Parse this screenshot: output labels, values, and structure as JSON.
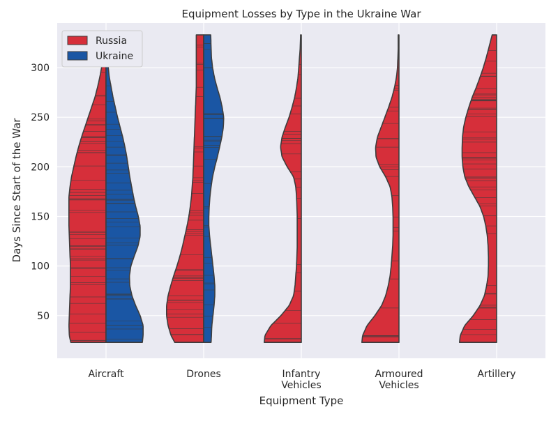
{
  "chart_data": {
    "type": "violin",
    "title": "Equipment Losses by Type in the Ukraine War",
    "xlabel": "Equipment Type",
    "ylabel": "Days Since Start of the War",
    "categories": [
      "Aircraft",
      "Drones",
      "Infantry Vehicles",
      "Armoured Vehicles",
      "Artillery"
    ],
    "category_labels": [
      [
        "Aircraft"
      ],
      [
        "Drones"
      ],
      [
        "Infantry",
        "Vehicles"
      ],
      [
        "Armoured",
        "Vehicles"
      ],
      [
        "Artillery"
      ]
    ],
    "ylim": [
      7,
      345
    ],
    "yticks": [
      50,
      100,
      150,
      200,
      250,
      300
    ],
    "y_range": [
      23,
      333
    ],
    "grid": true,
    "legend": {
      "position": "top-left",
      "entries": [
        "Russia",
        "Ukraine"
      ]
    },
    "series": [
      {
        "name": "Russia",
        "color": "#d62f3a",
        "side": "left",
        "density_y": [
          23,
          30,
          40,
          50,
          60,
          70,
          80,
          90,
          100,
          110,
          120,
          130,
          140,
          150,
          160,
          170,
          180,
          190,
          200,
          210,
          220,
          230,
          240,
          250,
          260,
          270,
          280,
          290,
          300,
          310,
          320,
          333
        ],
        "widths": [
          [
            0.95,
            0.99,
            1.0,
            0.99,
            0.98,
            0.97,
            0.96,
            0.96,
            0.96,
            0.97,
            0.98,
            0.99,
            1.0,
            1.0,
            1.0,
            1.0,
            0.97,
            0.93,
            0.87,
            0.81,
            0.74,
            0.66,
            0.57,
            0.48,
            0.39,
            0.3,
            0.23,
            0.17,
            0.12,
            0.08,
            0.05,
            0.02
          ],
          [
            0.78,
            0.88,
            0.96,
            1.0,
            1.0,
            0.96,
            0.89,
            0.81,
            0.72,
            0.64,
            0.57,
            0.51,
            0.45,
            0.4,
            0.36,
            0.33,
            0.31,
            0.29,
            0.28,
            0.27,
            0.26,
            0.25,
            0.24,
            0.23,
            0.22,
            0.21,
            0.2,
            0.2,
            0.2,
            0.2,
            0.2,
            0.2
          ],
          [
            1.0,
            0.98,
            0.82,
            0.55,
            0.33,
            0.21,
            0.17,
            0.15,
            0.13,
            0.12,
            0.11,
            0.11,
            0.11,
            0.11,
            0.12,
            0.13,
            0.15,
            0.21,
            0.38,
            0.52,
            0.56,
            0.52,
            0.43,
            0.33,
            0.25,
            0.18,
            0.13,
            0.09,
            0.07,
            0.05,
            0.03,
            0.02
          ],
          [
            1.0,
            0.98,
            0.86,
            0.65,
            0.47,
            0.36,
            0.29,
            0.24,
            0.21,
            0.19,
            0.17,
            0.16,
            0.16,
            0.16,
            0.17,
            0.19,
            0.24,
            0.36,
            0.52,
            0.62,
            0.63,
            0.58,
            0.48,
            0.38,
            0.28,
            0.19,
            0.12,
            0.07,
            0.04,
            0.03,
            0.02,
            0.02
          ],
          [
            1.0,
            0.98,
            0.86,
            0.63,
            0.45,
            0.33,
            0.27,
            0.23,
            0.22,
            0.22,
            0.23,
            0.25,
            0.29,
            0.35,
            0.45,
            0.6,
            0.75,
            0.86,
            0.91,
            0.93,
            0.93,
            0.92,
            0.89,
            0.83,
            0.75,
            0.66,
            0.55,
            0.45,
            0.36,
            0.28,
            0.21,
            0.12
          ]
        ]
      },
      {
        "name": "Ukraine",
        "color": "#1a56a4",
        "side": "right",
        "density_y": [
          23,
          30,
          40,
          50,
          60,
          70,
          80,
          90,
          100,
          110,
          120,
          130,
          140,
          150,
          160,
          170,
          180,
          190,
          200,
          210,
          220,
          230,
          240,
          250,
          260,
          270,
          280,
          290,
          300,
          310,
          320,
          333
        ],
        "widths": [
          [
            0.98,
            1.0,
            1.0,
            0.92,
            0.8,
            0.7,
            0.64,
            0.63,
            0.67,
            0.76,
            0.86,
            0.92,
            0.92,
            0.87,
            0.8,
            0.74,
            0.69,
            0.64,
            0.6,
            0.56,
            0.51,
            0.45,
            0.38,
            0.31,
            0.25,
            0.19,
            0.14,
            0.09,
            0.06,
            0.04,
            0.03,
            0.01
          ],
          [
            0.2,
            0.21,
            0.22,
            0.25,
            0.28,
            0.3,
            0.3,
            0.28,
            0.25,
            0.22,
            0.19,
            0.16,
            0.14,
            0.14,
            0.15,
            0.17,
            0.2,
            0.24,
            0.3,
            0.37,
            0.43,
            0.49,
            0.53,
            0.54,
            0.5,
            0.44,
            0.36,
            0.29,
            0.24,
            0.21,
            0.2,
            0.19
          ]
        ]
      }
    ]
  }
}
